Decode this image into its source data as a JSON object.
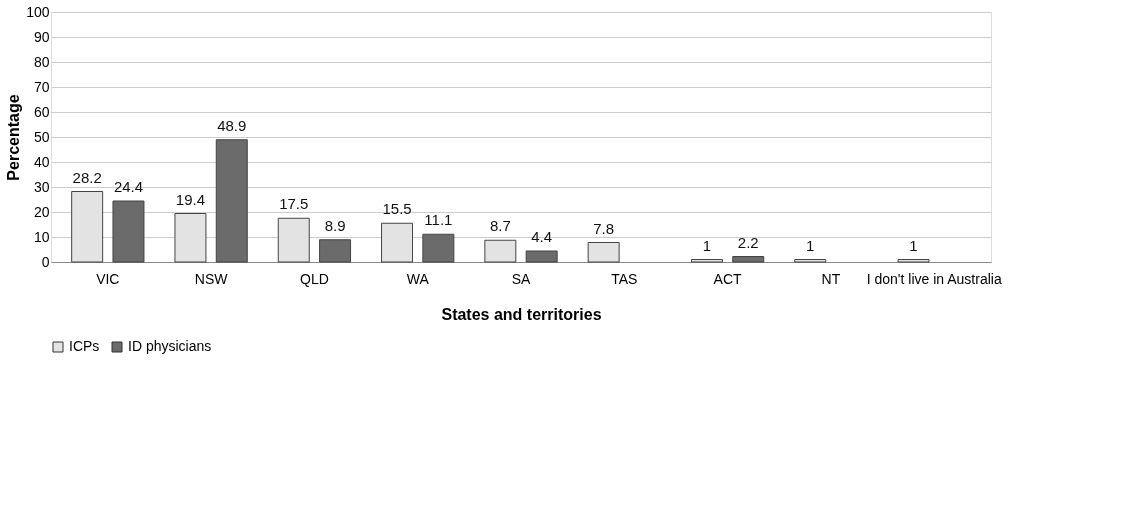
{
  "chart_data": {
    "type": "bar",
    "xlabel": "States and territories",
    "ylabel": "Percentage",
    "categories": [
      "VIC",
      "NSW",
      "QLD",
      "WA",
      "SA",
      "TAS",
      "ACT",
      "NT",
      "I don't live in Australia"
    ],
    "series": [
      {
        "name": "ICPs",
        "color": "#e3e3e3",
        "values": [
          28.2,
          19.4,
          17.5,
          15.5,
          8.7,
          7.8,
          1,
          1,
          1
        ]
      },
      {
        "name": "ID physicians",
        "color": "#6b6b6b",
        "values": [
          24.4,
          48.9,
          8.9,
          11.1,
          4.4,
          null,
          2.2,
          null,
          null
        ]
      }
    ],
    "ylim": [
      0,
      100
    ],
    "yticks": [
      0,
      10,
      20,
      30,
      40,
      50,
      60,
      70,
      80,
      90,
      100
    ],
    "grid": "y",
    "legend": "bottom",
    "data_labels": true
  }
}
